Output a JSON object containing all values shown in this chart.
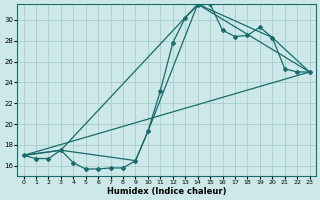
{
  "xlabel": "Humidex (Indice chaleur)",
  "background_color": "#cce8e8",
  "grid_color": "#aacccc",
  "line_color": "#1a6b6b",
  "xlim": [
    -0.5,
    23.5
  ],
  "ylim": [
    15.0,
    31.5
  ],
  "xticks": [
    0,
    1,
    2,
    3,
    4,
    5,
    6,
    7,
    8,
    9,
    10,
    11,
    12,
    13,
    14,
    15,
    16,
    17,
    18,
    19,
    20,
    21,
    22,
    23
  ],
  "yticks": [
    16,
    18,
    20,
    22,
    24,
    26,
    28,
    30
  ],
  "line1_x": [
    0,
    1,
    2,
    3,
    4,
    5,
    6,
    7,
    8,
    9,
    10,
    11,
    12,
    13,
    14,
    15,
    16,
    17,
    18,
    19,
    20,
    21,
    22,
    23
  ],
  "line1_y": [
    17.0,
    16.7,
    16.7,
    17.5,
    16.3,
    15.7,
    15.7,
    15.8,
    15.8,
    16.5,
    19.3,
    23.2,
    27.8,
    30.2,
    31.4,
    31.5,
    29.0,
    28.4,
    28.5,
    29.3,
    28.3,
    25.3,
    25.0,
    25.0
  ],
  "upper_line_x": [
    0,
    3,
    14,
    20,
    23
  ],
  "upper_line_y": [
    17.0,
    17.5,
    31.5,
    28.3,
    25.0
  ],
  "lower_line_x": [
    0,
    3,
    9,
    10,
    14,
    23
  ],
  "lower_line_y": [
    17.0,
    17.5,
    16.5,
    19.3,
    31.5,
    25.0
  ]
}
